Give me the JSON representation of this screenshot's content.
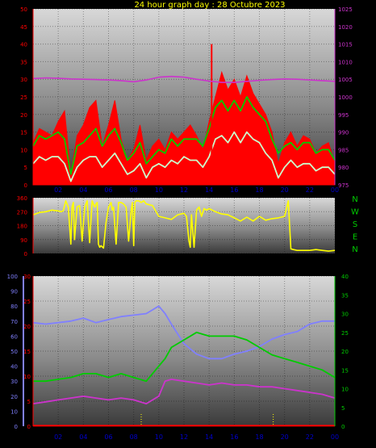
{
  "title": "24 hour graph day : 28 Octubre 2023",
  "colors": {
    "title": "#ffff00",
    "wind": "#ff0000",
    "gust": "#00cc00",
    "wind_avg": "#ccffcc",
    "pressure": "#cc33cc",
    "direction": "#ffff00",
    "humidity": "#8080ff",
    "temperature": "#00cc00",
    "dewpoint": "#cc33cc",
    "rain": "#ff0000",
    "uv": "#ffff00",
    "axis_left": "#ff0000",
    "axis_right": "#cc33cc",
    "axis_blue": "#8080ff",
    "axis_green": "#00cc00",
    "x_labels": "#0000cc",
    "compass": "#00cc00"
  },
  "chart_data": [
    {
      "id": "wind_pressure",
      "type": "line",
      "x_ticks": [
        "02",
        "04",
        "06",
        "08",
        "10",
        "12",
        "14",
        "16",
        "18",
        "20",
        "22",
        "00"
      ],
      "x_range": [
        0,
        24
      ],
      "y_left_ticks": [
        "0",
        "5",
        "10",
        "15",
        "20",
        "25",
        "30",
        "35",
        "40",
        "45",
        "50"
      ],
      "y_left_range": [
        0,
        50
      ],
      "y_right_ticks": [
        "975",
        "980",
        "985",
        "990",
        "995",
        "1000",
        "1005",
        "1010",
        "1015",
        "1020",
        "1025"
      ],
      "y_right_range": [
        975,
        1025
      ],
      "series": [
        {
          "key": "wind",
          "axis": "left",
          "style": "filled",
          "x": [
            0,
            0.5,
            1,
            1.5,
            2,
            2.5,
            3,
            3.5,
            4,
            4.5,
            5,
            5.5,
            6,
            6.5,
            7,
            7.5,
            8,
            8.5,
            9,
            9.5,
            10,
            10.5,
            11,
            11.5,
            12,
            12.5,
            13,
            13.5,
            14,
            14.5,
            15,
            15.5,
            16,
            16.5,
            17,
            17.5,
            18,
            18.5,
            19,
            19.5,
            20,
            20.5,
            21,
            21.5,
            22,
            22.5,
            23,
            23.5,
            24
          ],
          "y": [
            12,
            16,
            15,
            14,
            18,
            21,
            3,
            14,
            17,
            22,
            24,
            11,
            17,
            24,
            13,
            7,
            10,
            17,
            7,
            11,
            13,
            10,
            15,
            13,
            15,
            17,
            14,
            10,
            18,
            25,
            32,
            27,
            30,
            25,
            31,
            26,
            23,
            20,
            15,
            6,
            12,
            15,
            11,
            14,
            13,
            9,
            11,
            12,
            6
          ]
        },
        {
          "key": "gust",
          "axis": "left",
          "style": "line",
          "x": [
            0,
            0.5,
            1,
            1.5,
            2,
            2.5,
            3,
            3.5,
            4,
            4.5,
            5,
            5.5,
            6,
            6.5,
            7,
            7.5,
            8,
            8.5,
            9,
            9.5,
            10,
            10.5,
            11,
            11.5,
            12,
            12.5,
            13,
            13.5,
            14,
            14.5,
            15,
            15.5,
            16,
            16.5,
            17,
            17.5,
            18,
            18.5,
            19,
            19.5,
            20,
            20.5,
            21,
            21.5,
            22,
            22.5,
            23,
            23.5,
            24
          ],
          "y": [
            11,
            14,
            13,
            14,
            15,
            13,
            3,
            11,
            12,
            14,
            16,
            11,
            14,
            16,
            12,
            7,
            9,
            12,
            6,
            8,
            10,
            9,
            13,
            11,
            13,
            13,
            13,
            11,
            16,
            22,
            24,
            21,
            24,
            21,
            25,
            22,
            20,
            18,
            13,
            9,
            11,
            12,
            10,
            12,
            12,
            9,
            10,
            10,
            7
          ]
        },
        {
          "key": "wind_avg",
          "axis": "left",
          "style": "line",
          "x": [
            0,
            0.5,
            1,
            1.5,
            2,
            2.5,
            3,
            3.5,
            4,
            4.5,
            5,
            5.5,
            6,
            6.5,
            7,
            7.5,
            8,
            8.5,
            9,
            9.5,
            10,
            10.5,
            11,
            11.5,
            12,
            12.5,
            13,
            13.5,
            14,
            14.5,
            15,
            15.5,
            16,
            16.5,
            17,
            17.5,
            18,
            18.5,
            19,
            19.5,
            20,
            20.5,
            21,
            21.5,
            22,
            22.5,
            23,
            23.5,
            24
          ],
          "y": [
            6,
            8,
            7,
            8,
            8,
            6,
            1,
            5,
            7,
            8,
            8,
            5,
            7,
            9,
            6,
            3,
            4,
            6,
            2,
            5,
            6,
            5,
            7,
            6,
            8,
            7,
            7,
            5,
            8,
            13,
            14,
            12,
            15,
            12,
            15,
            13,
            12,
            9,
            7,
            2,
            5,
            7,
            5,
            6,
            6,
            4,
            5,
            5,
            3
          ]
        },
        {
          "key": "spike",
          "axis": "left",
          "style": "bar",
          "x": [
            14.2
          ],
          "y": [
            40
          ]
        },
        {
          "key": "pressure",
          "axis": "right",
          "style": "line",
          "x": [
            0,
            1,
            2,
            3,
            4,
            5,
            6,
            7,
            8,
            9,
            10,
            11,
            12,
            13,
            14,
            15,
            16,
            17,
            18,
            19,
            20,
            21,
            22,
            23,
            24
          ],
          "y": [
            1005.2,
            1005.4,
            1005.3,
            1005.1,
            1005.0,
            1004.9,
            1004.8,
            1004.6,
            1004.3,
            1004.8,
            1005.6,
            1005.8,
            1005.6,
            1005.0,
            1004.5,
            1004.1,
            1004.1,
            1004.4,
            1004.7,
            1004.9,
            1005.1,
            1005.0,
            1004.8,
            1004.6,
            1004.4
          ]
        }
      ]
    },
    {
      "id": "wind_direction",
      "type": "line",
      "x_range": [
        0,
        24
      ],
      "y_ticks": [
        "0",
        "90",
        "180",
        "270",
        "360"
      ],
      "y_range": [
        0,
        360
      ],
      "compass": [
        "N",
        "W",
        "S",
        "E",
        "N"
      ],
      "series": [
        {
          "key": "direction",
          "x": [
            0,
            0.5,
            1,
            1.5,
            2,
            2.2,
            2.4,
            2.6,
            2.8,
            3,
            3.1,
            3.2,
            3.3,
            3.5,
            3.7,
            3.9,
            4.1,
            4.3,
            4.5,
            4.7,
            4.9,
            5,
            5.1,
            5.2,
            5.3,
            5.4,
            5.6,
            5.8,
            6,
            6.2,
            6.3,
            6.4,
            6.6,
            6.8,
            7,
            7.2,
            7.4,
            7.6,
            7.8,
            7.9,
            8,
            8.1,
            8.2,
            8.4,
            8.6,
            8.8,
            9,
            9.5,
            10,
            10.5,
            11,
            11.5,
            12,
            12.2,
            12.4,
            12.5,
            12.6,
            12.8,
            13,
            13.2,
            13.4,
            13.6,
            13.8,
            14,
            14.5,
            15,
            15.5,
            16,
            16.5,
            17,
            17.5,
            18,
            18.5,
            19,
            19.5,
            20,
            20.3,
            20.5,
            20.7,
            21,
            21.5,
            22,
            22.5,
            23,
            23.5,
            24
          ],
          "y": [
            250,
            265,
            270,
            280,
            275,
            270,
            275,
            340,
            300,
            60,
            300,
            330,
            90,
            300,
            310,
            80,
            300,
            340,
            70,
            340,
            300,
            320,
            330,
            60,
            40,
            50,
            35,
            200,
            300,
            330,
            280,
            300,
            60,
            330,
            330,
            320,
            300,
            80,
            280,
            330,
            50,
            330,
            340,
            340,
            330,
            340,
            320,
            310,
            240,
            230,
            220,
            250,
            260,
            240,
            80,
            40,
            250,
            40,
            280,
            300,
            240,
            290,
            280,
            290,
            270,
            255,
            250,
            230,
            210,
            235,
            210,
            240,
            215,
            225,
            230,
            240,
            340,
            30,
            25,
            20,
            20,
            20,
            25,
            20,
            15,
            20
          ]
        }
      ]
    },
    {
      "id": "temp_hum_rain",
      "type": "line",
      "x_ticks": [
        "02",
        "04",
        "06",
        "08",
        "10",
        "12",
        "14",
        "16",
        "18",
        "20",
        "22",
        "00"
      ],
      "x_range": [
        0,
        24
      ],
      "y_blue_ticks": [
        "0",
        "10",
        "20",
        "30",
        "40",
        "50",
        "60",
        "70",
        "80",
        "90",
        "100"
      ],
      "y_blue_range": [
        0,
        100
      ],
      "y_left_ticks": [
        "0",
        "5",
        "10",
        "15",
        "20",
        "25",
        "30"
      ],
      "y_left_range": [
        0,
        30
      ],
      "y_right_ticks": [
        "0",
        "5",
        "10",
        "15",
        "20",
        "25",
        "30",
        "35",
        "40"
      ],
      "y_right_range": [
        0,
        40
      ],
      "series": [
        {
          "key": "humidity",
          "axis": "blue",
          "x": [
            0,
            1,
            2,
            3,
            4,
            5,
            6,
            7,
            8,
            9,
            10,
            10.5,
            11,
            12,
            13,
            14,
            15,
            16,
            17,
            18,
            19,
            20,
            21,
            22,
            23,
            24
          ],
          "y": [
            69,
            68,
            69,
            70,
            72,
            69,
            71,
            73,
            74,
            75,
            80,
            75,
            68,
            55,
            48,
            45,
            45,
            48,
            50,
            53,
            58,
            61,
            63,
            68,
            70,
            70
          ]
        },
        {
          "key": "temperature",
          "axis": "right",
          "x": [
            0,
            1,
            2,
            3,
            4,
            5,
            6,
            7,
            8,
            9,
            10,
            10.5,
            11,
            12,
            13,
            14,
            15,
            16,
            17,
            18,
            19,
            20,
            21,
            22,
            23,
            24
          ],
          "y": [
            12,
            12,
            12.5,
            13,
            14,
            14,
            13,
            14,
            13,
            12,
            16,
            18,
            21,
            23,
            25,
            24,
            24,
            24,
            23,
            21,
            19,
            18,
            17,
            16,
            15,
            13
          ]
        },
        {
          "key": "dewpoint",
          "axis": "right",
          "x": [
            0,
            1,
            2,
            3,
            4,
            5,
            6,
            7,
            8,
            9,
            10,
            10.5,
            11,
            12,
            13,
            14,
            15,
            16,
            17,
            18,
            19,
            20,
            21,
            22,
            23,
            24
          ],
          "y": [
            6,
            6.5,
            7,
            7.5,
            8,
            7.5,
            7,
            7.5,
            7,
            6,
            8,
            12,
            12.5,
            12,
            11.5,
            11,
            11.5,
            11,
            11,
            10.5,
            10.5,
            10,
            9.5,
            9,
            8.5,
            7.5
          ]
        },
        {
          "key": "rain",
          "axis": "left",
          "x": [
            0,
            24
          ],
          "y": [
            0.1,
            0.1
          ]
        }
      ]
    }
  ]
}
